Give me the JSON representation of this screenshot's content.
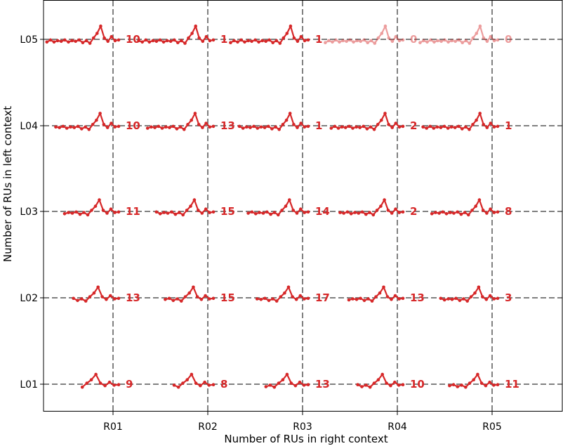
{
  "chart_data": {
    "type": "scatter",
    "title": "",
    "xlabel": "Number of RUs in right context",
    "ylabel": "Number of RUs in left context",
    "x_categories": [
      "R01",
      "R02",
      "R03",
      "R04",
      "R05"
    ],
    "y_categories": [
      "L01",
      "L02",
      "L03",
      "L04",
      "L05"
    ],
    "grid": "dashed gray lines at each category",
    "legend": "none",
    "series_color": "#d62728",
    "cells": [
      {
        "left": "L05",
        "right": "R01",
        "count": 10
      },
      {
        "left": "L05",
        "right": "R02",
        "count": 1
      },
      {
        "left": "L05",
        "right": "R03",
        "count": 1
      },
      {
        "left": "L05",
        "right": "R04",
        "count": 0
      },
      {
        "left": "L05",
        "right": "R05",
        "count": 0
      },
      {
        "left": "L04",
        "right": "R01",
        "count": 10
      },
      {
        "left": "L04",
        "right": "R02",
        "count": 13
      },
      {
        "left": "L04",
        "right": "R03",
        "count": 1
      },
      {
        "left": "L04",
        "right": "R04",
        "count": 2
      },
      {
        "left": "L04",
        "right": "R05",
        "count": 1
      },
      {
        "left": "L03",
        "right": "R01",
        "count": 11
      },
      {
        "left": "L03",
        "right": "R02",
        "count": 15
      },
      {
        "left": "L03",
        "right": "R03",
        "count": 14
      },
      {
        "left": "L03",
        "right": "R04",
        "count": 2
      },
      {
        "left": "L03",
        "right": "R05",
        "count": 8
      },
      {
        "left": "L02",
        "right": "R01",
        "count": 13
      },
      {
        "left": "L02",
        "right": "R02",
        "count": 15
      },
      {
        "left": "L02",
        "right": "R03",
        "count": 17
      },
      {
        "left": "L02",
        "right": "R04",
        "count": 13
      },
      {
        "left": "L02",
        "right": "R05",
        "count": 3
      },
      {
        "left": "L01",
        "right": "R01",
        "count": 9
      },
      {
        "left": "L01",
        "right": "R02",
        "count": 8
      },
      {
        "left": "L01",
        "right": "R03",
        "count": 13
      },
      {
        "left": "L01",
        "right": "R04",
        "count": 10
      },
      {
        "left": "L01",
        "right": "R05",
        "count": 11
      }
    ]
  }
}
